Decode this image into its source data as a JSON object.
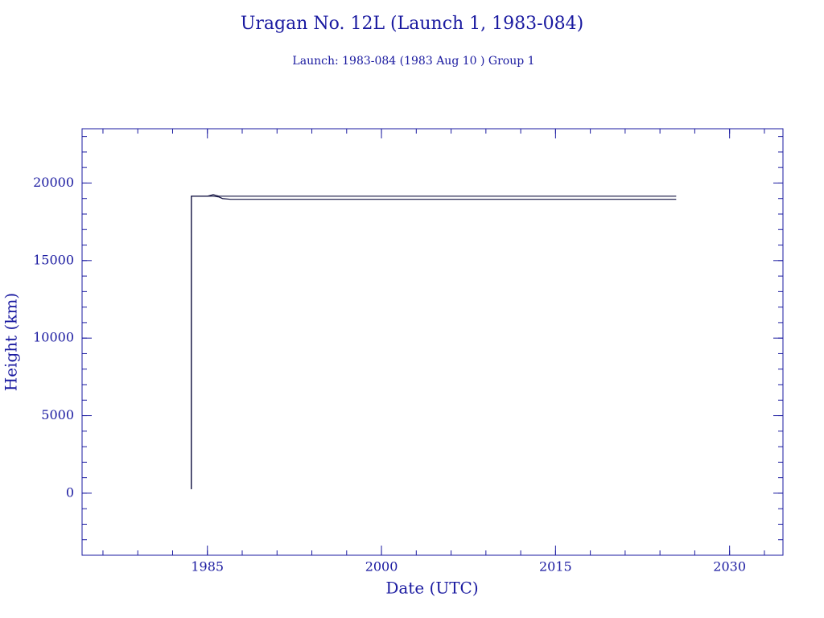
{
  "chart_data": {
    "type": "line",
    "title": "Uragan No. 12L (Launch 1, 1983-084)",
    "subtitle": "Launch: 1983-084  (1983 Aug 10 )  Group 1",
    "x_label": "Date (UTC)",
    "y_label": "Height (km)",
    "x": [
      1983.61,
      1983.62,
      1985.0,
      1985.5,
      1986.0,
      1986.3,
      1987.0,
      2025.4
    ],
    "series": [
      {
        "color": "#101040",
        "values": [
          260,
          19150,
          19150,
          19250,
          19150,
          19150,
          19150,
          19150
        ]
      },
      {
        "color": "#101040",
        "values": [
          260,
          19150,
          19150,
          19150,
          19100,
          19000,
          18950,
          18950
        ]
      }
    ],
    "xlim": [
      1974.2,
      2034.6
    ],
    "ylim": [
      -4000,
      23500
    ],
    "xticks": [
      1985,
      2000,
      2015,
      2030
    ],
    "yticks": [
      0,
      5000,
      10000,
      15000,
      20000
    ],
    "grid": false
  }
}
